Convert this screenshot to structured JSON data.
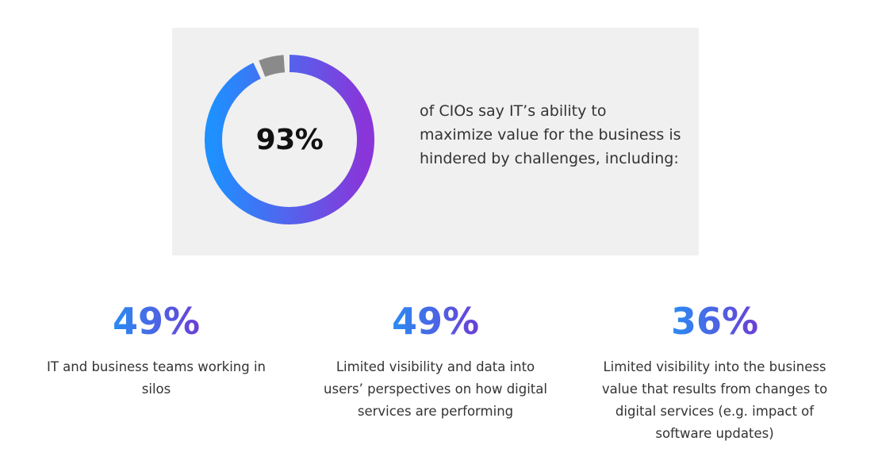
{
  "hero": {
    "headline_value": "93%",
    "description": "of CIOs say IT’s ability to maximize value for the business is hindered by challenges, including:"
  },
  "chart_data": {
    "type": "pie",
    "title": "",
    "values": [
      93,
      7
    ],
    "center_label": "93%",
    "colors": {
      "gradient_start": "#1e90ff",
      "gradient_end": "#8a35d9",
      "remainder": "#8a8a8a",
      "panel_background": "#f0f0f0"
    }
  },
  "stats": [
    {
      "value": "49%",
      "description": "IT and business teams working in silos"
    },
    {
      "value": "49%",
      "description": "Limited visibility and data into users’ perspectives on how digital services are performing"
    },
    {
      "value": "36%",
      "description": "Limited visibility into the business value that results from changes to digital services (e.g. impact of software updates)"
    }
  ],
  "colors": {
    "stat_gradient_start": "#2a8cf2",
    "stat_gradient_end": "#6b3fd6",
    "text": "#333333"
  }
}
